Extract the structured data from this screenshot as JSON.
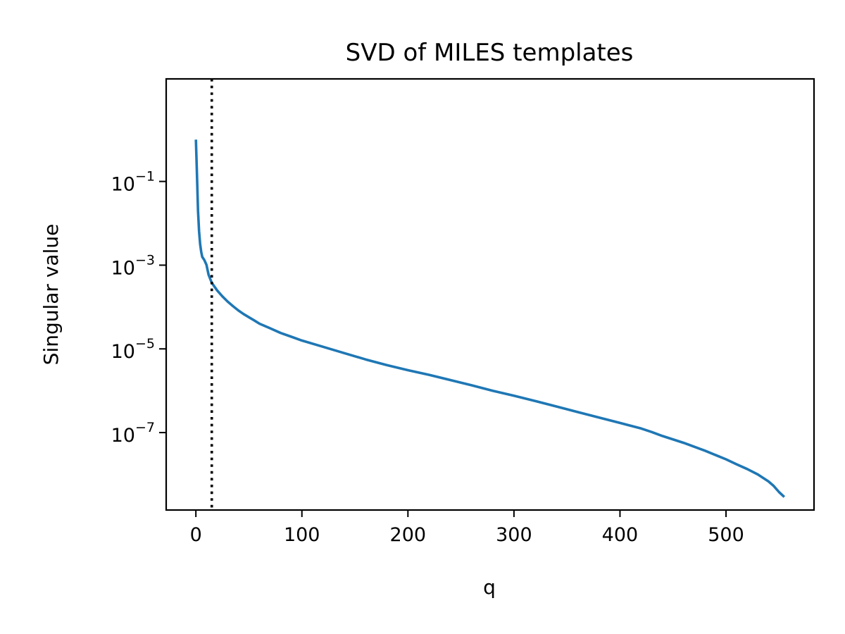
{
  "chart_data": {
    "type": "line",
    "title": "SVD of MILES templates",
    "xlabel": "q",
    "ylabel": "Singular value",
    "xlim": [
      -28,
      583
    ],
    "ylim_log10": [
      -8.85,
      1.45
    ],
    "yscale": "log",
    "grid": false,
    "legend": "none",
    "x_ticks": [
      {
        "value": 0,
        "label": "0"
      },
      {
        "value": 100,
        "label": "100"
      },
      {
        "value": 200,
        "label": "200"
      },
      {
        "value": 300,
        "label": "300"
      },
      {
        "value": 400,
        "label": "400"
      },
      {
        "value": 500,
        "label": "500"
      }
    ],
    "y_ticks": [
      {
        "value": 0.1,
        "mantissa": "10",
        "exponent": "−1"
      },
      {
        "value": 0.001,
        "mantissa": "10",
        "exponent": "−3"
      },
      {
        "value": 1e-05,
        "mantissa": "10",
        "exponent": "−5"
      },
      {
        "value": 1e-07,
        "mantissa": "10",
        "exponent": "−7"
      }
    ],
    "series": [
      {
        "color": "#1f77b4",
        "x": [
          0,
          1,
          2,
          3,
          4,
          5,
          6,
          8,
          10,
          12,
          15,
          20,
          25,
          30,
          35,
          40,
          45,
          50,
          55,
          60,
          70,
          80,
          90,
          100,
          120,
          140,
          160,
          180,
          200,
          220,
          240,
          260,
          280,
          300,
          320,
          340,
          360,
          380,
          400,
          420,
          430,
          440,
          460,
          480,
          500,
          510,
          520,
          530,
          540,
          545,
          550,
          555
        ],
        "y": [
          1.0,
          0.15,
          0.02,
          0.0065,
          0.0032,
          0.0021,
          0.00158,
          0.00132,
          0.00102,
          0.00059,
          0.00038,
          0.00025,
          0.00018,
          0.000135,
          0.000105,
          8.3e-05,
          6.8e-05,
          5.7e-05,
          4.8e-05,
          4e-05,
          3.1e-05,
          2.4e-05,
          1.95e-05,
          1.58e-05,
          1.12e-05,
          7.9e-06,
          5.6e-06,
          4.1e-06,
          3.1e-06,
          2.4e-06,
          1.8e-06,
          1.35e-06,
          1e-06,
          7.6e-07,
          5.7e-07,
          4.2e-07,
          3.1e-07,
          2.3e-07,
          1.7e-07,
          1.25e-07,
          1.03e-07,
          8.3e-08,
          5.7e-08,
          3.7e-08,
          2.3e-08,
          1.75e-08,
          1.35e-08,
          1e-08,
          6.8e-09,
          5.3e-09,
          3.8e-09,
          2.9e-09
        ]
      }
    ],
    "vline": {
      "x": 15,
      "style": "dotted",
      "color": "#000000"
    }
  }
}
